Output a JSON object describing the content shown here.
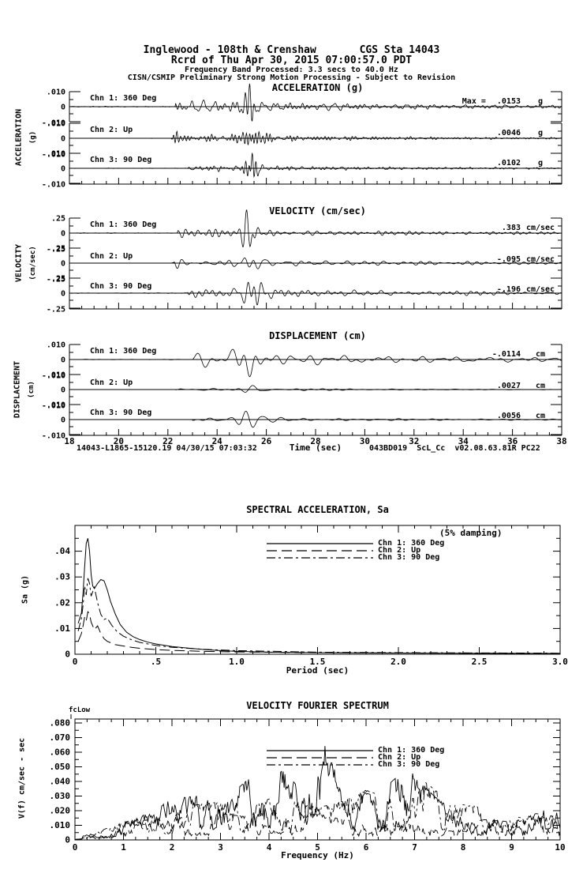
{
  "page": {
    "header": {
      "line1": "Inglewood - 108th & Crenshaw       CGS Sta 14043",
      "line2": "Rcrd of Thu Apr 30, 2015 07:00:57.0 PDT",
      "line3": "Frequency Band Processed: 3.3 secs to 40.0 Hz",
      "line4": "CISN/CSMIP Preliminary Strong Motion Processing - Subject to Revision"
    },
    "footer": {
      "left": "14043-L1865-15120.19 04/30/15 07:03:32",
      "right": "043BD019  ScL_Cc  v02.08.63.81R PC22"
    }
  },
  "chart_data": [
    {
      "id": "acceleration",
      "type": "line",
      "title": "ACCELERATION (g)",
      "axis_label": "ACCELERATION",
      "axis_unit": "(g)",
      "xlim": [
        18,
        38
      ],
      "scale_value": 0.01,
      "scale_labels": [
        ".010",
        "0",
        "-.010"
      ],
      "freq_band": [
        1.5,
        8.5
      ],
      "channels": [
        {
          "label": "Chn 1: 360 Deg",
          "peak_label": "Max =",
          "value": ".0153",
          "unit": "g",
          "peak": 0.0153,
          "sign": 1,
          "onset": 22.3,
          "burst": 25.35,
          "coda": 0.17,
          "bw": 0.28,
          "seed": 101
        },
        {
          "label": "Chn 2: Up",
          "value": ".0046",
          "unit": "g",
          "peak": 0.0046,
          "sign": 1,
          "onset": 22.2,
          "burst": 25.45,
          "coda": 0.34,
          "bw": 0.5,
          "seed": 102,
          "ob": true
        },
        {
          "label": "Chn 3: 90 Deg",
          "value": ".0102",
          "unit": "g",
          "peak": 0.0102,
          "sign": 1,
          "onset": 22.8,
          "burst": 25.4,
          "coda": 0.17,
          "bw": 0.3,
          "seed": 103
        }
      ]
    },
    {
      "id": "velocity",
      "type": "line",
      "title": "VELOCITY (cm/sec)",
      "axis_label": "VELOCITY",
      "axis_unit": "(cm/sec)",
      "xlim": [
        18,
        38
      ],
      "scale_value": 0.25,
      "scale_labels": [
        ".25",
        "0",
        "-.25"
      ],
      "freq_band": [
        0.8,
        4.5
      ],
      "channels": [
        {
          "label": "Chn 1: 360 Deg",
          "value": ".383",
          "unit": "cm/sec",
          "peak": 0.383,
          "sign": 1,
          "onset": 22.4,
          "burst": 25.35,
          "coda": 0.2,
          "bw": 0.3,
          "seed": 201
        },
        {
          "label": "Chn 2: Up",
          "value": "-.095",
          "unit": "cm/sec",
          "peak": 0.095,
          "sign": -1,
          "onset": 22.25,
          "burst": 25.4,
          "coda": 0.45,
          "bw": 0.6,
          "seed": 202,
          "ob": true
        },
        {
          "label": "Chn 3: 90 Deg",
          "value": "-.196",
          "unit": "cm/sec",
          "peak": 0.196,
          "sign": -1,
          "onset": 22.8,
          "burst": 25.45,
          "coda": 0.22,
          "bw": 0.3,
          "seed": 203
        }
      ]
    },
    {
      "id": "displacement",
      "type": "line",
      "title": "DISPLACEMENT (cm)",
      "axis_label": "DISPLACEMENT",
      "axis_unit": "(cm)",
      "xlabel": "Time (sec)",
      "xlim": [
        18,
        38
      ],
      "scale_value": 0.01,
      "scale_labels": [
        ".010",
        "0",
        "-.010"
      ],
      "freq_band": [
        0.45,
        2.2
      ],
      "xticks": [
        {
          "v": 18,
          "t": "18"
        },
        {
          "v": 20,
          "t": "20"
        },
        {
          "v": 22,
          "t": "22"
        },
        {
          "v": 24,
          "t": "24"
        },
        {
          "v": 26,
          "t": "26"
        },
        {
          "v": 28,
          "t": "28"
        },
        {
          "v": 30,
          "t": "30"
        },
        {
          "v": 32,
          "t": "32"
        },
        {
          "v": 34,
          "t": "34"
        },
        {
          "v": 36,
          "t": "36"
        },
        {
          "v": 38,
          "t": "38"
        }
      ],
      "channels": [
        {
          "label": "Chn 1: 360 Deg",
          "value": "-.0114",
          "unit": "cm",
          "peak": 0.0114,
          "sign": -1,
          "onset": 23.0,
          "burst": 25.3,
          "coda": 0.3,
          "bw": 0.5,
          "seed": 301
        },
        {
          "label": "Chn 2: Up",
          "value": ".0027",
          "unit": "cm",
          "peak": 0.0027,
          "sign": 1,
          "onset": 22.3,
          "burst": 25.4,
          "coda": 0.45,
          "bw": 0.6,
          "seed": 302,
          "ob": true
        },
        {
          "label": "Chn 3: 90 Deg",
          "value": ".0056",
          "unit": "cm",
          "peak": 0.0056,
          "sign": 1,
          "onset": 23.0,
          "burst": 25.35,
          "coda": 0.3,
          "bw": 0.5,
          "seed": 303
        }
      ]
    },
    {
      "id": "spectral_acceleration",
      "type": "line",
      "title": "SPECTRAL ACCELERATION, Sa",
      "annotation": "(5% damping)",
      "xlabel": "Period (sec)",
      "ylabel": "Sa (g)",
      "xlim": [
        0,
        3.0
      ],
      "ylim": [
        0,
        0.05
      ],
      "xticks": [
        {
          "v": 0,
          "t": "0"
        },
        {
          "v": 0.5,
          "t": ".5"
        },
        {
          "v": 1.0,
          "t": "1.0"
        },
        {
          "v": 1.5,
          "t": "1.5"
        },
        {
          "v": 2.0,
          "t": "2.0"
        },
        {
          "v": 2.5,
          "t": "2.5"
        },
        {
          "v": 3.0,
          "t": "3.0"
        }
      ],
      "yticks": [
        {
          "v": 0,
          "t": "0"
        },
        {
          "v": 0.01,
          "t": ".01"
        },
        {
          "v": 0.02,
          "t": ".02"
        },
        {
          "v": 0.03,
          "t": ".03"
        },
        {
          "v": 0.04,
          "t": ".04"
        }
      ],
      "legend": [
        "Chn 1: 360 Deg",
        "Chn 2: Up",
        "Chn 3: 90 Deg"
      ],
      "series": [
        {
          "name": "Chn 1: 360 Deg",
          "dash": "solid",
          "points": [
            [
              0.02,
              0.012
            ],
            [
              0.04,
              0.016
            ],
            [
              0.05,
              0.024
            ],
            [
              0.06,
              0.034
            ],
            [
              0.07,
              0.043
            ],
            [
              0.08,
              0.045
            ],
            [
              0.09,
              0.04
            ],
            [
              0.1,
              0.031
            ],
            [
              0.11,
              0.0265
            ],
            [
              0.12,
              0.0255
            ],
            [
              0.14,
              0.0275
            ],
            [
              0.16,
              0.029
            ],
            [
              0.18,
              0.0285
            ],
            [
              0.2,
              0.025
            ],
            [
              0.22,
              0.0205
            ],
            [
              0.25,
              0.0155
            ],
            [
              0.28,
              0.0115
            ],
            [
              0.32,
              0.0085
            ],
            [
              0.36,
              0.0068
            ],
            [
              0.4,
              0.0057
            ],
            [
              0.45,
              0.0047
            ],
            [
              0.5,
              0.004
            ],
            [
              0.6,
              0.003
            ],
            [
              0.7,
              0.0024
            ],
            [
              0.8,
              0.0018
            ],
            [
              0.9,
              0.0014
            ],
            [
              1.0,
              0.0011
            ],
            [
              1.2,
              0.0008
            ],
            [
              1.5,
              0.0006
            ],
            [
              2.0,
              0.00045
            ],
            [
              2.5,
              0.00035
            ],
            [
              3.0,
              0.0003
            ]
          ]
        },
        {
          "name": "Chn 2: Up",
          "dash": "long-dash",
          "points": [
            [
              0.02,
              0.005
            ],
            [
              0.04,
              0.008
            ],
            [
              0.05,
              0.011
            ],
            [
              0.06,
              0.0145
            ],
            [
              0.07,
              0.013
            ],
            [
              0.08,
              0.0165
            ],
            [
              0.09,
              0.0155
            ],
            [
              0.1,
              0.0125
            ],
            [
              0.12,
              0.0095
            ],
            [
              0.14,
              0.011
            ],
            [
              0.16,
              0.008
            ],
            [
              0.18,
              0.006
            ],
            [
              0.2,
              0.005
            ],
            [
              0.25,
              0.0037
            ],
            [
              0.3,
              0.0032
            ],
            [
              0.35,
              0.0027
            ],
            [
              0.4,
              0.0023
            ],
            [
              0.5,
              0.0018
            ],
            [
              0.6,
              0.0015
            ],
            [
              0.8,
              0.0011
            ],
            [
              1.0,
              0.0009
            ],
            [
              1.5,
              0.0006
            ],
            [
              2.0,
              0.00045
            ],
            [
              3.0,
              0.0003
            ]
          ]
        },
        {
          "name": "Chn 3: 90 Deg",
          "dash": "dash-dot",
          "points": [
            [
              0.02,
              0.009
            ],
            [
              0.04,
              0.014
            ],
            [
              0.05,
              0.019
            ],
            [
              0.06,
              0.0265
            ],
            [
              0.07,
              0.023
            ],
            [
              0.08,
              0.0295
            ],
            [
              0.09,
              0.0275
            ],
            [
              0.1,
              0.0225
            ],
            [
              0.12,
              0.026
            ],
            [
              0.14,
              0.02
            ],
            [
              0.16,
              0.0155
            ],
            [
              0.18,
              0.0135
            ],
            [
              0.2,
              0.014
            ],
            [
              0.23,
              0.011
            ],
            [
              0.26,
              0.0088
            ],
            [
              0.3,
              0.007
            ],
            [
              0.35,
              0.0056
            ],
            [
              0.4,
              0.0046
            ],
            [
              0.5,
              0.0034
            ],
            [
              0.6,
              0.0027
            ],
            [
              0.8,
              0.0019
            ],
            [
              1.0,
              0.0014
            ],
            [
              1.5,
              0.0008
            ],
            [
              2.0,
              0.0006
            ],
            [
              3.0,
              0.0004
            ]
          ]
        }
      ]
    },
    {
      "id": "velocity_fourier_spectrum",
      "type": "line",
      "title": "VELOCITY FOURIER SPECTRUM",
      "corner_label": "fcLow",
      "xlabel": "Frequency (Hz)",
      "ylabel": "V(f)  cm/sec - sec",
      "xlim": [
        0,
        10
      ],
      "ylim": [
        0,
        0.0827
      ],
      "xticks": [
        {
          "v": 0,
          "t": "0"
        },
        {
          "v": 1,
          "t": "1"
        },
        {
          "v": 2,
          "t": "2"
        },
        {
          "v": 3,
          "t": "3"
        },
        {
          "v": 4,
          "t": "4"
        },
        {
          "v": 5,
          "t": "5"
        },
        {
          "v": 6,
          "t": "6"
        },
        {
          "v": 7,
          "t": "7"
        },
        {
          "v": 8,
          "t": "8"
        },
        {
          "v": 9,
          "t": "9"
        },
        {
          "v": 10,
          "t": "10"
        }
      ],
      "yticks": [
        {
          "v": 0,
          "t": "0"
        },
        {
          "v": 0.01,
          "t": ".010"
        },
        {
          "v": 0.02,
          "t": ".020"
        },
        {
          "v": 0.03,
          "t": ".030"
        },
        {
          "v": 0.04,
          "t": ".040"
        },
        {
          "v": 0.05,
          "t": ".050"
        },
        {
          "v": 0.06,
          "t": ".060"
        },
        {
          "v": 0.07,
          "t": ".070"
        },
        {
          "v": 0.08,
          "t": ".080"
        }
      ],
      "legend": [
        "Chn 1: 360 Deg",
        "Chn 2: Up",
        "Chn 3: 90 Deg"
      ],
      "series": [
        {
          "name": "Chn 1: 360 Deg",
          "dash": "solid",
          "seed": 41,
          "envelope": [
            [
              0,
              0.001
            ],
            [
              0.3,
              0.004
            ],
            [
              0.6,
              0.006
            ],
            [
              1.0,
              0.012
            ],
            [
              1.5,
              0.018
            ],
            [
              2.0,
              0.028
            ],
            [
              2.5,
              0.03
            ],
            [
              3.0,
              0.04
            ],
            [
              3.3,
              0.034
            ],
            [
              3.6,
              0.042
            ],
            [
              4.0,
              0.04
            ],
            [
              4.3,
              0.048
            ],
            [
              4.6,
              0.036
            ],
            [
              4.9,
              0.063
            ],
            [
              5.2,
              0.066
            ],
            [
              5.5,
              0.03
            ],
            [
              5.8,
              0.034
            ],
            [
              6.2,
              0.03
            ],
            [
              6.6,
              0.042
            ],
            [
              6.8,
              0.051
            ],
            [
              7.0,
              0.044
            ],
            [
              7.4,
              0.03
            ],
            [
              7.8,
              0.02
            ],
            [
              8.2,
              0.016
            ],
            [
              8.6,
              0.014
            ],
            [
              9.0,
              0.012
            ],
            [
              9.4,
              0.018
            ],
            [
              9.7,
              0.03
            ],
            [
              10,
              0.02
            ]
          ]
        },
        {
          "name": "Chn 2: Up",
          "dash": "long-dash",
          "seed": 42,
          "envelope": [
            [
              0,
              0.001
            ],
            [
              0.5,
              0.005
            ],
            [
              1.0,
              0.01
            ],
            [
              1.5,
              0.014
            ],
            [
              2.0,
              0.016
            ],
            [
              2.5,
              0.014
            ],
            [
              3.0,
              0.018
            ],
            [
              3.5,
              0.016
            ],
            [
              4.0,
              0.018
            ],
            [
              4.5,
              0.015
            ],
            [
              5.0,
              0.018
            ],
            [
              5.5,
              0.014
            ],
            [
              6.0,
              0.012
            ],
            [
              6.5,
              0.014
            ],
            [
              7.0,
              0.016
            ],
            [
              7.5,
              0.012
            ],
            [
              8.0,
              0.012
            ],
            [
              8.5,
              0.014
            ],
            [
              9.0,
              0.012
            ],
            [
              9.5,
              0.018
            ],
            [
              10,
              0.016
            ]
          ]
        },
        {
          "name": "Chn 3: 90 Deg",
          "dash": "dash-dot",
          "seed": 43,
          "envelope": [
            [
              0,
              0.001
            ],
            [
              0.5,
              0.006
            ],
            [
              1.0,
              0.012
            ],
            [
              1.5,
              0.016
            ],
            [
              2.0,
              0.02
            ],
            [
              2.5,
              0.024
            ],
            [
              3.0,
              0.026
            ],
            [
              3.5,
              0.022
            ],
            [
              4.0,
              0.028
            ],
            [
              4.5,
              0.026
            ],
            [
              5.0,
              0.022
            ],
            [
              5.5,
              0.026
            ],
            [
              6.0,
              0.034
            ],
            [
              6.5,
              0.028
            ],
            [
              7.0,
              0.03
            ],
            [
              7.2,
              0.04
            ],
            [
              7.5,
              0.032
            ],
            [
              8.0,
              0.024
            ],
            [
              8.5,
              0.022
            ],
            [
              9.0,
              0.016
            ],
            [
              9.5,
              0.014
            ],
            [
              10,
              0.018
            ]
          ]
        }
      ]
    }
  ]
}
